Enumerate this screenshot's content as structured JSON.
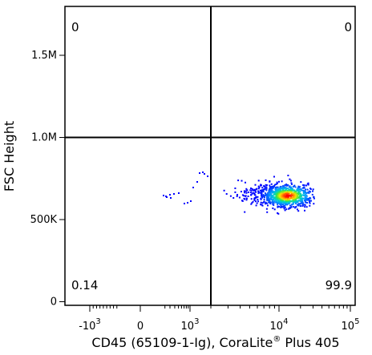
{
  "chart_data": {
    "type": "scatter",
    "plot_style": "density (pseudocolor) dot plot with quadrant gate",
    "xlabel": "CD45 (65109-1-Ig), CoraLite",
    "xlabel_superscript": "®",
    "xlabel_suffix": " Plus 405",
    "ylabel": "FSC Height",
    "x_scale": "biexponential",
    "x_ticks": [
      {
        "value": -1000,
        "base": "-10",
        "exp": "3"
      },
      {
        "value": 0,
        "base": "0",
        "exp": ""
      },
      {
        "value": 1000,
        "base": "10",
        "exp": "3"
      },
      {
        "value": 10000,
        "base": "10",
        "exp": "4"
      },
      {
        "value": 100000,
        "base": "10",
        "exp": "5"
      }
    ],
    "y_ticks": [
      {
        "value": 0,
        "label": "0"
      },
      {
        "value": 500000,
        "label": "500K"
      },
      {
        "value": 1000000,
        "label": "1.0M"
      },
      {
        "value": 1500000,
        "label": "1.5M"
      }
    ],
    "ylim": [
      0,
      1800000
    ],
    "gate": {
      "x_threshold": 2000,
      "y_threshold": 1000000
    },
    "quadrants": {
      "upper_left": "0",
      "upper_right": "0",
      "lower_left": "0.14",
      "lower_right": "99.9"
    },
    "population": {
      "center_x": 13000,
      "center_y": 650000,
      "description": "single dense CD45-positive population, peak density red-orange at center, fading through yellow/green/cyan to blue at edges"
    },
    "grid": false,
    "colors": {
      "gate_lines": "#000000",
      "density_low": "#0000ff",
      "density_mid": "#00c8c8",
      "density_high": "#ff0000"
    }
  }
}
